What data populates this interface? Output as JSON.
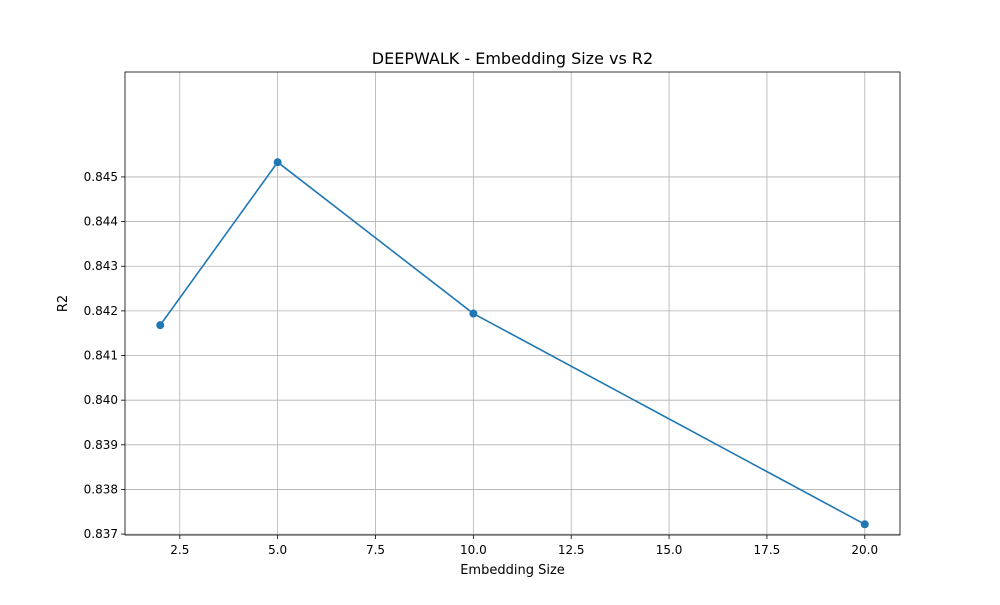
{
  "chart_data": {
    "type": "line",
    "title": "DEEPWALK - Embedding Size vs R2",
    "xlabel": "Embedding Size",
    "ylabel": "R2",
    "xlim": [
      1.1,
      20.9
    ],
    "ylim": [
      0.83698,
      0.84735
    ],
    "x_ticks": [
      2.5,
      5.0,
      7.5,
      10.0,
      12.5,
      15.0,
      17.5,
      20.0
    ],
    "x_tick_labels": [
      "2.5",
      "5.0",
      "7.5",
      "10.0",
      "12.5",
      "15.0",
      "17.5",
      "20.0"
    ],
    "y_ticks": [
      0.837,
      0.838,
      0.839,
      0.84,
      0.841,
      0.842,
      0.843,
      0.844,
      0.845
    ],
    "y_tick_labels": [
      "0.837",
      "0.838",
      "0.839",
      "0.840",
      "0.841",
      "0.842",
      "0.843",
      "0.844",
      "0.845"
    ],
    "grid": true,
    "series": [
      {
        "x": [
          2,
          5,
          10,
          20
        ],
        "y": [
          0.84168,
          0.84533,
          0.84194,
          0.83722
        ],
        "color": "#1f77b4",
        "marker": "circle"
      }
    ]
  }
}
